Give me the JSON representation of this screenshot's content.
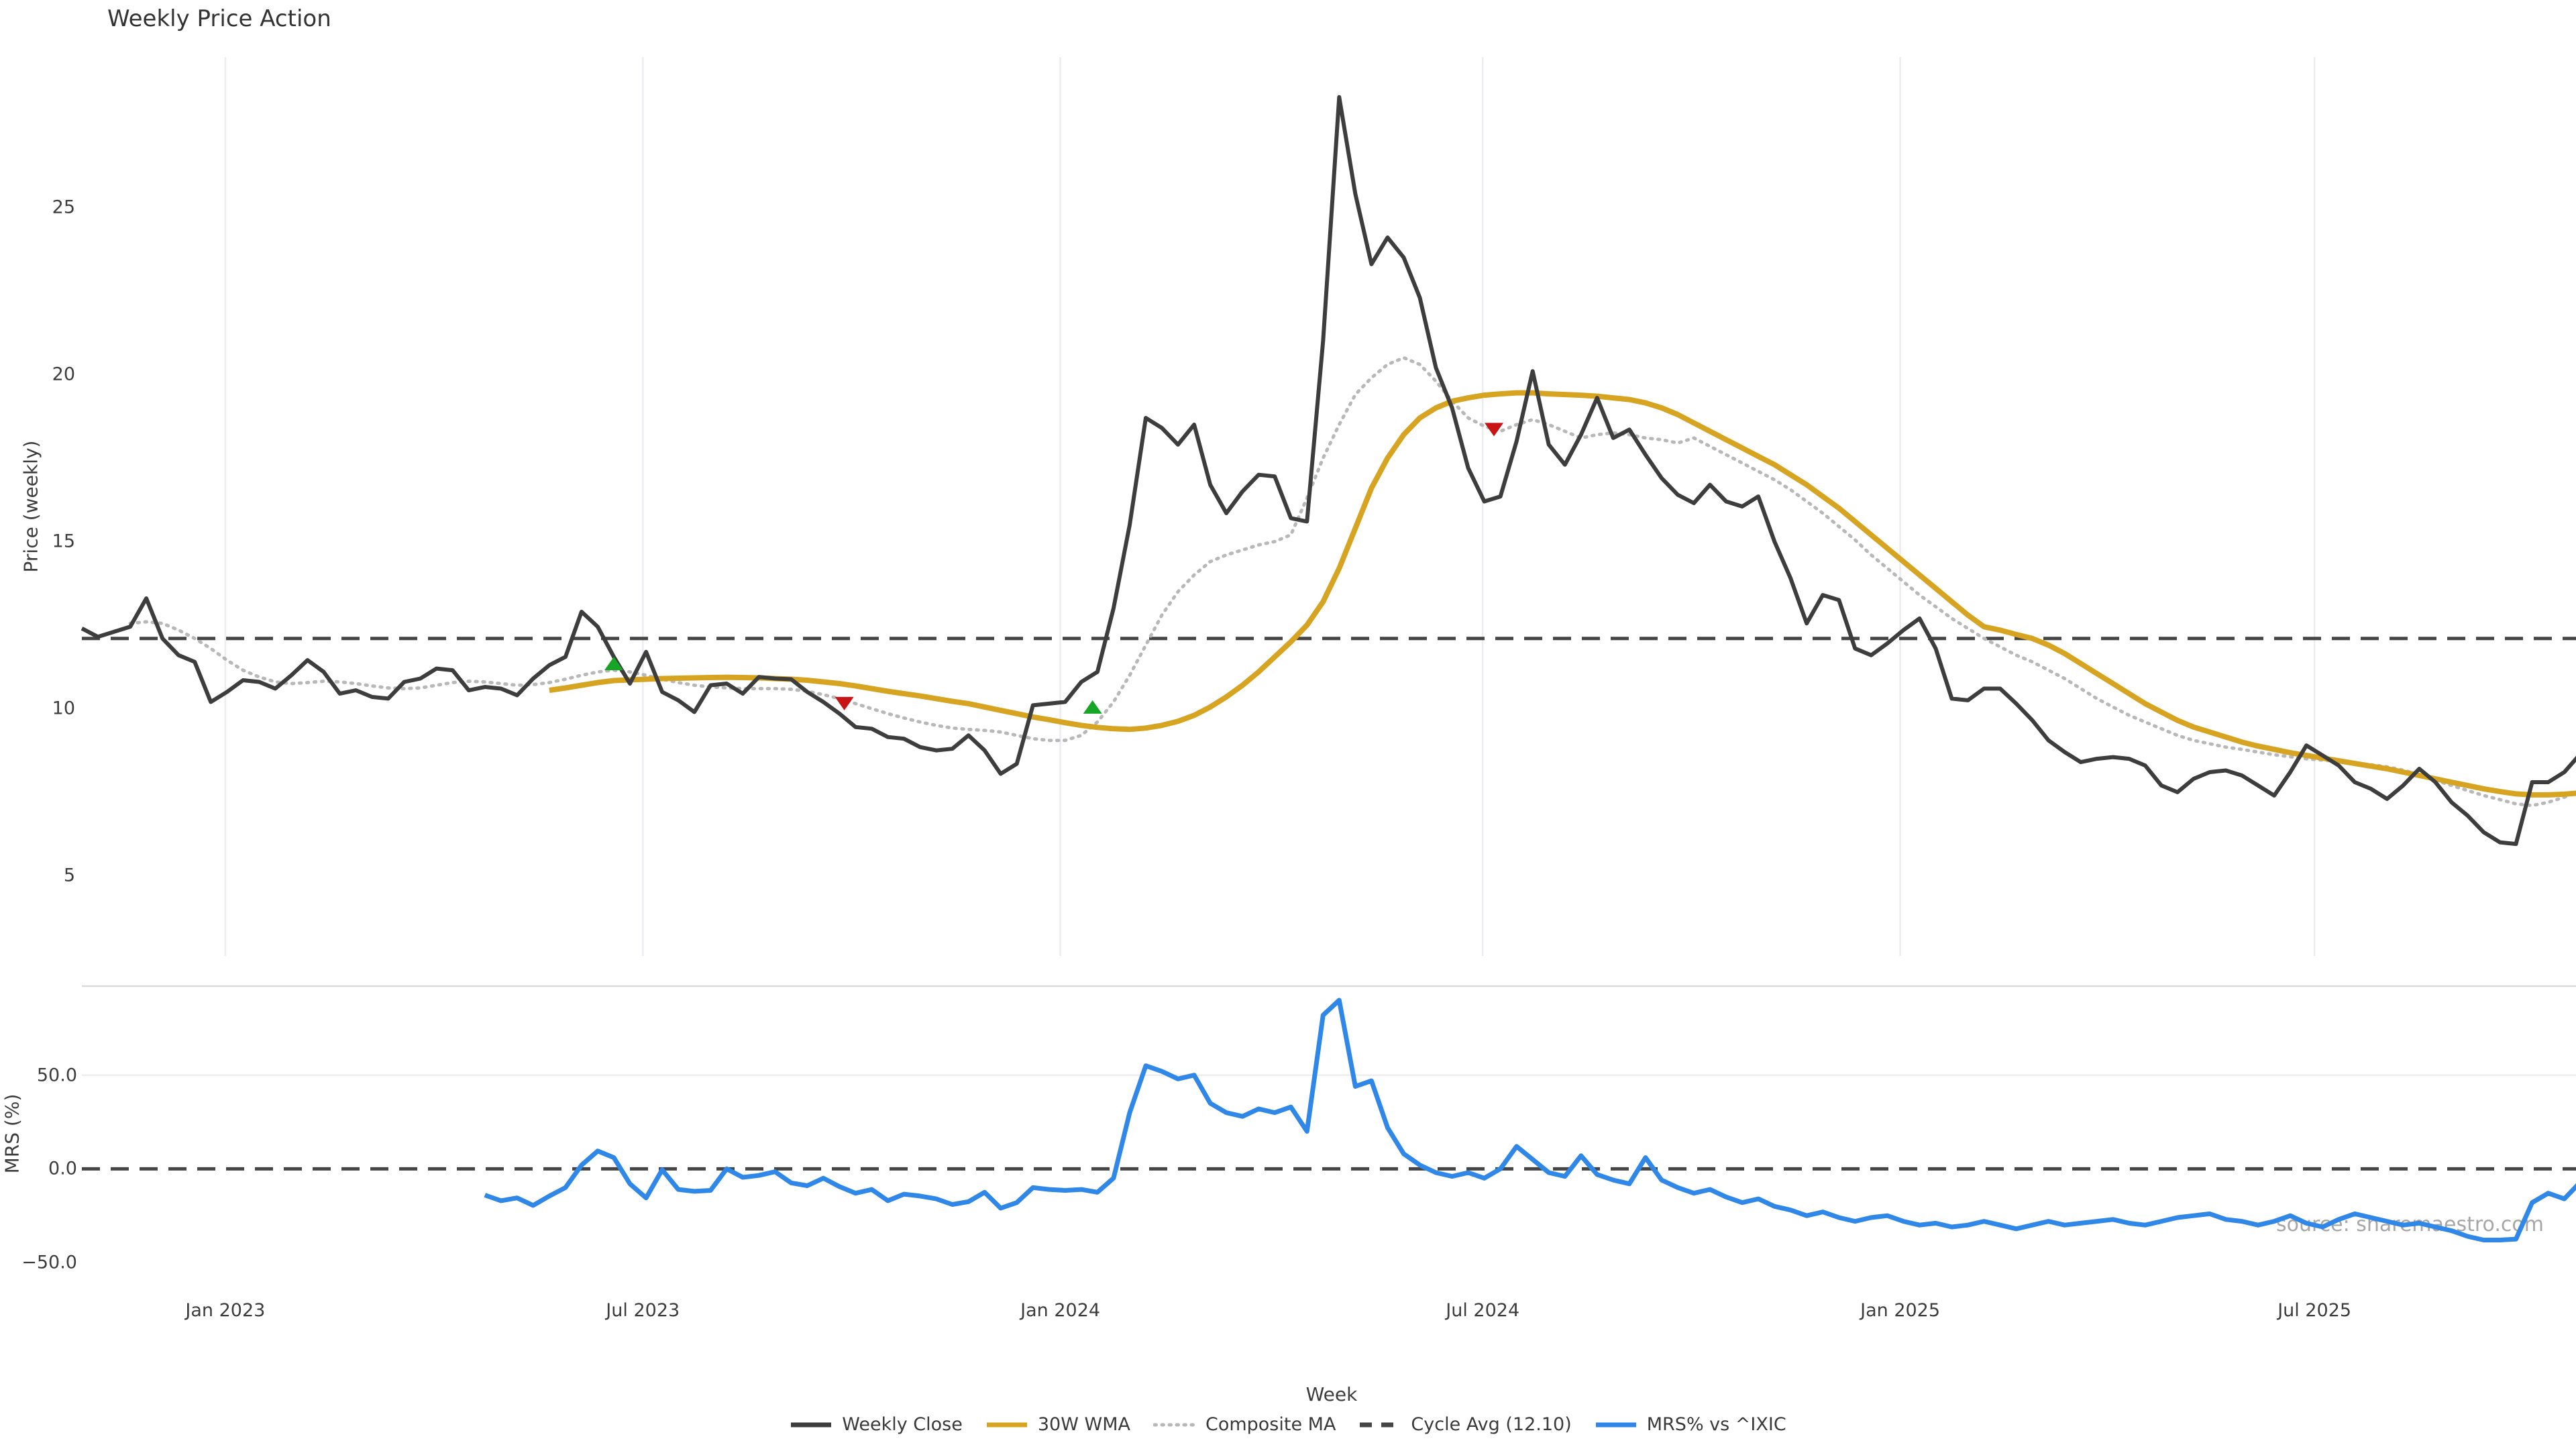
{
  "watermark": "source: sharemaestro.com",
  "chart_data": {
    "type": "line",
    "title": "Weekly Price Action",
    "xlabel": "Week",
    "x_start_date": "2022-10-31",
    "x_step": "1 week",
    "grid": "vertical light gridlines on price panel only; dashed reference lines",
    "legend_position": "bottom center",
    "colors": {
      "close": "#3d3d3d",
      "wma": "#d7a421",
      "composite": "#b8b8b8",
      "cycle": "#454545",
      "mrs": "#2f87e8",
      "buy": "#16a524",
      "sell": "#c81414",
      "grid": "#ececf1",
      "spine": "#d9d9de",
      "text": "#3a3a3a"
    },
    "xticks": [
      {
        "week": 8.9,
        "label": "Jan 2023"
      },
      {
        "week": 34.8,
        "label": "Jul 2023"
      },
      {
        "week": 60.7,
        "label": "Jan 2024"
      },
      {
        "week": 86.9,
        "label": "Jul 2024"
      },
      {
        "week": 112.8,
        "label": "Jan 2025"
      },
      {
        "week": 138.5,
        "label": "Jul 2025"
      }
    ],
    "panels": [
      {
        "name": "price",
        "ylabel": "Price (weekly)",
        "ylim": [
          2.6,
          29.5
        ],
        "yticks": [
          {
            "v": 5,
            "label": "5"
          },
          {
            "v": 10,
            "label": "10"
          },
          {
            "v": 15,
            "label": "15"
          },
          {
            "v": 20,
            "label": "20"
          },
          {
            "v": 25,
            "label": "25"
          }
        ],
        "cycle_avg": 12.1,
        "series": [
          {
            "name": "Weekly Close",
            "color_key": "close",
            "style": "solid",
            "width": 6,
            "start_week": 0,
            "values": [
              12.4,
              12.15,
              12.3,
              12.45,
              13.3,
              12.1,
              11.6,
              11.4,
              10.2,
              10.5,
              10.85,
              10.8,
              10.6,
              11.0,
              11.45,
              11.1,
              10.45,
              10.55,
              10.35,
              10.3,
              10.8,
              10.9,
              11.2,
              11.15,
              10.55,
              10.65,
              10.6,
              10.4,
              10.9,
              11.3,
              11.55,
              12.9,
              12.45,
              11.55,
              10.75,
              11.7,
              10.5,
              10.25,
              9.9,
              10.7,
              10.75,
              10.45,
              10.95,
              10.9,
              10.88,
              10.5,
              10.2,
              9.85,
              9.45,
              9.4,
              9.15,
              9.1,
              8.85,
              8.75,
              8.8,
              9.2,
              8.75,
              8.05,
              8.35,
              10.1,
              10.15,
              10.2,
              10.8,
              11.1,
              13.0,
              15.5,
              18.7,
              18.4,
              17.9,
              18.5,
              16.7,
              15.85,
              16.5,
              17.0,
              16.95,
              15.7,
              15.6,
              21.0,
              28.3,
              25.4,
              23.3,
              24.1,
              23.5,
              22.3,
              20.2,
              19.0,
              17.2,
              16.2,
              16.35,
              18.0,
              20.1,
              17.9,
              17.3,
              18.2,
              19.3,
              18.1,
              18.35,
              17.6,
              16.9,
              16.4,
              16.15,
              16.7,
              16.2,
              16.05,
              16.35,
              15.0,
              13.9,
              12.55,
              13.4,
              13.25,
              11.8,
              11.6,
              11.95,
              12.35,
              12.7,
              11.8,
              10.3,
              10.25,
              10.6,
              10.6,
              10.15,
              9.65,
              9.05,
              8.7,
              8.4,
              8.5,
              8.55,
              8.5,
              8.3,
              7.7,
              7.5,
              7.9,
              8.1,
              8.15,
              8.0,
              7.7,
              7.4,
              8.1,
              8.9,
              8.6,
              8.3,
              7.8,
              7.6,
              7.3,
              7.7,
              8.2,
              7.8,
              7.2,
              6.8,
              6.3,
              6.0,
              5.95,
              7.8,
              7.8,
              8.1,
              8.65
            ]
          },
          {
            "name": "30W WMA",
            "color_key": "wma",
            "style": "solid",
            "width": 8,
            "start_week": 29,
            "values": [
              10.55,
              10.62,
              10.7,
              10.78,
              10.84,
              10.86,
              10.88,
              10.9,
              10.91,
              10.92,
              10.93,
              10.94,
              10.93,
              10.92,
              10.9,
              10.88,
              10.85,
              10.8,
              10.75,
              10.68,
              10.6,
              10.52,
              10.45,
              10.38,
              10.3,
              10.22,
              10.15,
              10.05,
              9.95,
              9.85,
              9.75,
              9.67,
              9.58,
              9.5,
              9.44,
              9.4,
              9.38,
              9.42,
              9.5,
              9.62,
              9.8,
              10.05,
              10.35,
              10.7,
              11.1,
              11.55,
              12.0,
              12.5,
              13.2,
              14.2,
              15.4,
              16.6,
              17.5,
              18.2,
              18.7,
              19.0,
              19.2,
              19.3,
              19.38,
              19.42,
              19.45,
              19.45,
              19.42,
              19.4,
              19.38,
              19.35,
              19.3,
              19.25,
              19.15,
              19.0,
              18.8,
              18.55,
              18.3,
              18.05,
              17.8,
              17.55,
              17.3,
              17.0,
              16.7,
              16.35,
              16.0,
              15.6,
              15.2,
              14.8,
              14.4,
              14.0,
              13.6,
              13.2,
              12.8,
              12.45,
              12.35,
              12.22,
              12.1,
              11.9,
              11.65,
              11.35,
              11.05,
              10.75,
              10.45,
              10.15,
              9.9,
              9.65,
              9.45,
              9.3,
              9.15,
              9.0,
              8.88,
              8.78,
              8.68,
              8.6,
              8.52,
              8.44,
              8.36,
              8.28,
              8.2,
              8.1,
              8.0,
              7.9,
              7.8,
              7.7,
              7.6,
              7.52,
              7.45,
              7.42,
              7.42,
              7.44,
              7.48
            ]
          },
          {
            "name": "Composite MA",
            "color_key": "composite",
            "style": "dotted",
            "width": 5,
            "start_week": 3,
            "values": [
              12.55,
              12.6,
              12.55,
              12.35,
              12.1,
              11.8,
              11.45,
              11.15,
              10.95,
              10.8,
              10.75,
              10.78,
              10.82,
              10.8,
              10.75,
              10.68,
              10.62,
              10.6,
              10.62,
              10.7,
              10.78,
              10.82,
              10.8,
              10.75,
              10.7,
              10.72,
              10.78,
              10.88,
              11.0,
              11.1,
              11.15,
              11.1,
              11.0,
              10.88,
              10.78,
              10.7,
              10.65,
              10.62,
              10.6,
              10.6,
              10.6,
              10.58,
              10.52,
              10.42,
              10.3,
              10.15,
              10.0,
              9.85,
              9.72,
              9.6,
              9.5,
              9.42,
              9.38,
              9.35,
              9.3,
              9.2,
              9.1,
              9.05,
              9.05,
              9.2,
              9.6,
              10.2,
              11.0,
              11.9,
              12.8,
              13.5,
              14.0,
              14.4,
              14.6,
              14.75,
              14.9,
              15.0,
              15.2,
              16.3,
              17.5,
              18.5,
              19.4,
              19.9,
              20.3,
              20.5,
              20.3,
              19.8,
              19.2,
              18.7,
              18.45,
              18.3,
              18.5,
              18.65,
              18.5,
              18.3,
              18.1,
              18.2,
              18.25,
              18.2,
              18.1,
              18.05,
              17.95,
              18.1,
              17.85,
              17.6,
              17.35,
              17.1,
              16.85,
              16.55,
              16.2,
              15.85,
              15.45,
              15.05,
              14.6,
              14.2,
              13.8,
              13.4,
              13.05,
              12.7,
              12.4,
              12.1,
              11.85,
              11.6,
              11.4,
              11.15,
              10.9,
              10.6,
              10.3,
              10.05,
              9.8,
              9.6,
              9.4,
              9.2,
              9.05,
              8.95,
              8.85,
              8.78,
              8.7,
              8.62,
              8.56,
              8.5,
              8.46,
              8.42,
              8.38,
              8.32,
              8.26,
              8.16,
              8.02,
              7.86,
              7.7,
              7.55,
              7.4,
              7.28,
              7.15,
              7.1,
              7.2,
              7.35,
              7.55
            ]
          },
          {
            "name": "Cycle Avg (12.10)",
            "color_key": "cycle",
            "style": "dashed",
            "width": 5,
            "constant": 12.1
          }
        ],
        "markers": {
          "buy": [
            {
              "week": 33,
              "value": 11.35
            },
            {
              "week": 62.7,
              "value": 10.05
            }
          ],
          "sell": [
            {
              "week": 47.3,
              "value": 10.15
            },
            {
              "week": 87.6,
              "value": 18.35
            }
          ]
        }
      },
      {
        "name": "mrs",
        "ylabel": "MRS (%)",
        "ylim": [
          -60,
          97.5
        ],
        "yticks": [
          {
            "v": -50,
            "label": "−50.0"
          },
          {
            "v": 0,
            "label": "0.0"
          },
          {
            "v": 50,
            "label": "50.0"
          }
        ],
        "zero_line_dashed": true,
        "gridline_values": [
          50
        ],
        "series": [
          {
            "name": "MRS% vs ^IXIC",
            "color_key": "mrs",
            "style": "solid",
            "width": 7,
            "start_week": 25,
            "values": [
              -14,
              -17,
              -15.5,
              -19.5,
              -14.5,
              -10,
              2,
              9.5,
              6,
              -8,
              -15.5,
              -0.5,
              -11,
              -12,
              -11.5,
              0,
              -4.5,
              -3.5,
              -1.5,
              -7.5,
              -9,
              -5,
              -9.5,
              -13,
              -11,
              -17,
              -13.5,
              -14.5,
              -16,
              -19,
              -17.5,
              -12.5,
              -21,
              -18,
              -10,
              -11,
              -11.5,
              -11,
              -12.5,
              -5,
              30,
              55,
              52,
              48,
              50,
              35,
              30,
              28,
              32,
              30,
              33,
              20,
              82,
              90,
              44,
              47,
              22,
              8,
              2,
              -2,
              -4,
              -2,
              -5,
              0,
              12,
              5,
              -2,
              -4,
              7,
              -3,
              -6,
              -8,
              6,
              -6,
              -10,
              -13,
              -11,
              -15,
              -18,
              -16,
              -20,
              -22,
              -25,
              -23,
              -26,
              -28,
              -26,
              -25,
              -28,
              -30,
              -29,
              -31,
              -30,
              -28,
              -30,
              -32,
              -30,
              -28,
              -30,
              -29,
              -28,
              -27,
              -29,
              -30,
              -28,
              -26,
              -25,
              -24,
              -27,
              -28,
              -30,
              -28,
              -25,
              -29,
              -31,
              -27,
              -24,
              -26,
              -28,
              -30,
              -29,
              -31,
              -33,
              -36,
              -38,
              -38,
              -37.5,
              -18,
              -13,
              -16,
              -7
            ]
          }
        ]
      }
    ],
    "legend": [
      {
        "label": "Weekly Close",
        "color_key": "close",
        "style": "solid"
      },
      {
        "label": "30W WMA",
        "color_key": "wma",
        "style": "solid"
      },
      {
        "label": "Composite MA",
        "color_key": "composite",
        "style": "dotted"
      },
      {
        "label": "Cycle Avg (12.10)",
        "color_key": "cycle",
        "style": "dashed"
      },
      {
        "label": "MRS% vs ^IXIC",
        "color_key": "mrs",
        "style": "solid"
      }
    ]
  }
}
